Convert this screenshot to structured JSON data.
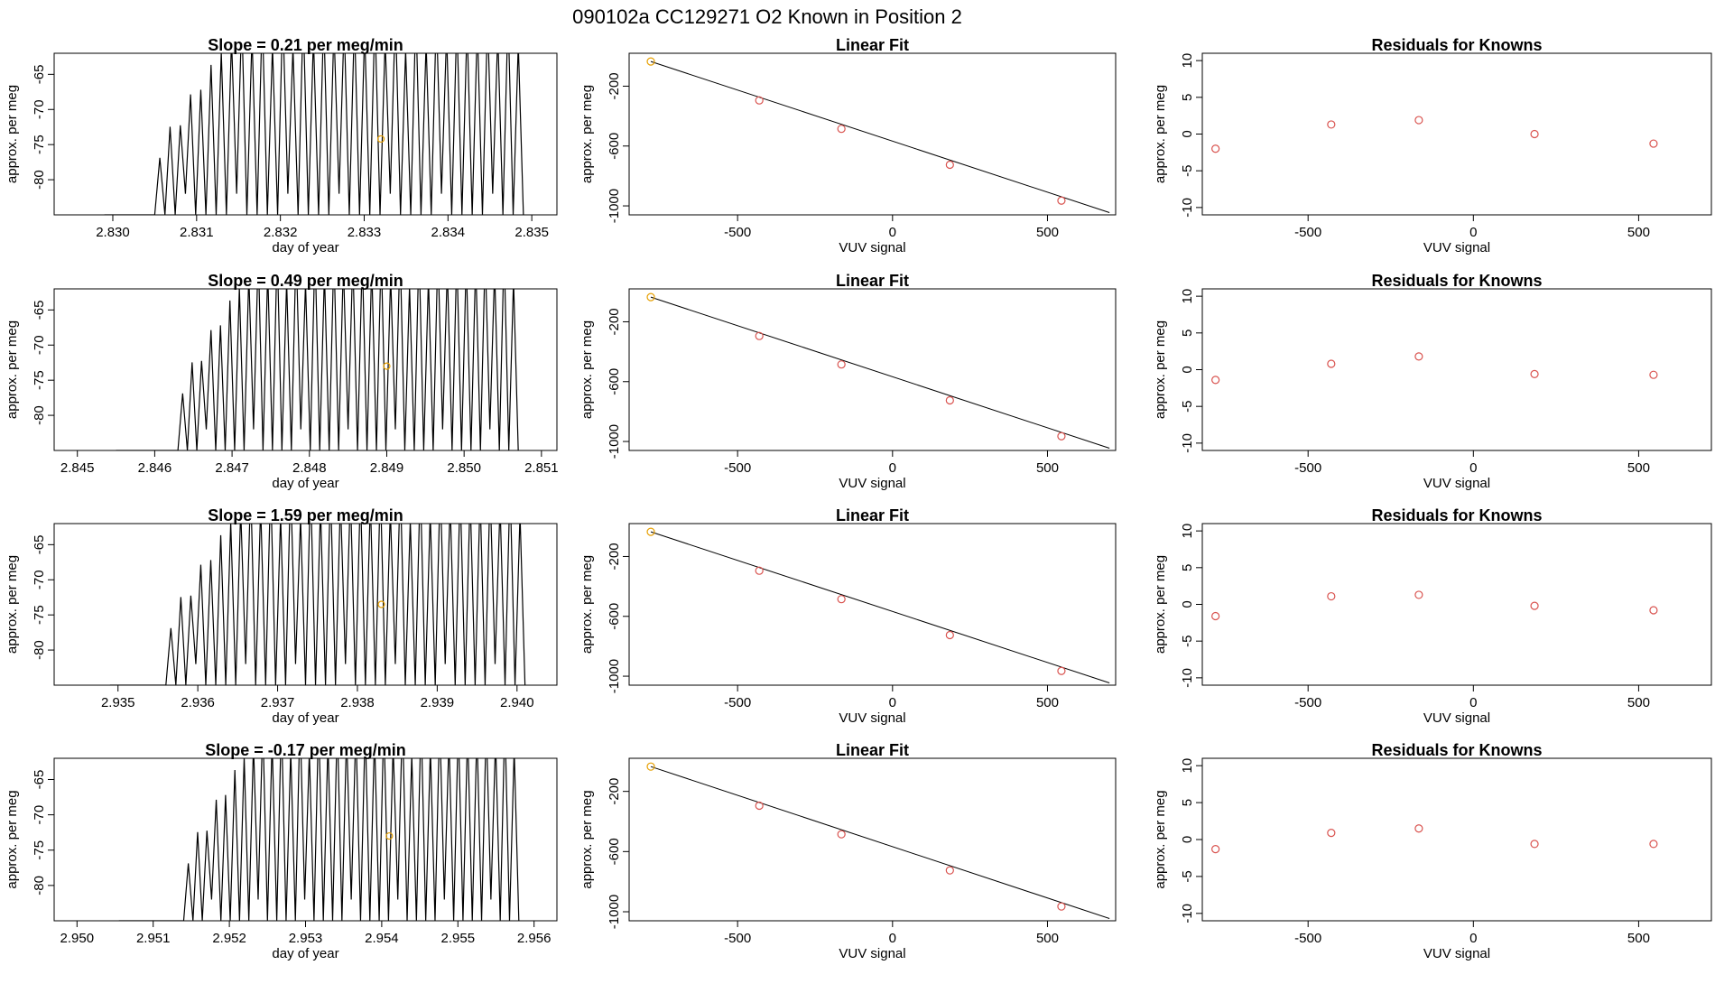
{
  "figure": {
    "title": "090102a      CC129271    O2 Known in Position  2"
  },
  "colors": {
    "axis": "#000000",
    "trace": "#000000",
    "point_orange": "#e69f00",
    "point_red": "#d9534f"
  },
  "chart_data": [
    {
      "type": "line",
      "row": 0,
      "col": 0,
      "title": "Slope =  0.21  per meg/min",
      "xlabel": "day of year",
      "ylabel": "approx. per meg",
      "xlim": [
        2.8293,
        2.8353
      ],
      "ylim": [
        -85,
        -62
      ],
      "xticks": [
        "2.830",
        "2.831",
        "2.832",
        "2.833",
        "2.834",
        "2.835"
      ],
      "yticks": [
        "-65",
        "-70",
        "-75",
        "-80"
      ],
      "trace": {
        "x_start": 2.8305,
        "x_end": 2.8349,
        "baseline": -85,
        "cycles": 36
      },
      "marker": {
        "x": 2.8332,
        "y": -74.2
      }
    },
    {
      "type": "line",
      "row": 1,
      "col": 0,
      "title": "Slope =  0.49  per meg/min",
      "xlabel": "day of year",
      "ylabel": "approx. per meg",
      "xlim": [
        2.8447,
        2.8512
      ],
      "ylim": [
        -85,
        -62
      ],
      "xticks": [
        "2.845",
        "2.846",
        "2.847",
        "2.848",
        "2.849",
        "2.850",
        "2.851"
      ],
      "yticks": [
        "-65",
        "-70",
        "-75",
        "-80"
      ],
      "trace": {
        "x_start": 2.8463,
        "x_end": 2.8507,
        "baseline": -85,
        "cycles": 36
      },
      "marker": {
        "x": 2.849,
        "y": -73
      }
    },
    {
      "type": "line",
      "row": 2,
      "col": 0,
      "title": "Slope =  1.59  per meg/min",
      "xlabel": "day of year",
      "ylabel": "approx. per meg",
      "xlim": [
        2.9342,
        2.9405
      ],
      "ylim": [
        -85,
        -62
      ],
      "xticks": [
        "2.935",
        "2.936",
        "2.937",
        "2.938",
        "2.939",
        "2.940"
      ],
      "yticks": [
        "-65",
        "-70",
        "-75",
        "-80"
      ],
      "trace": {
        "x_start": 2.9356,
        "x_end": 2.9401,
        "baseline": -85,
        "cycles": 36
      },
      "marker": {
        "x": 2.9383,
        "y": -73.5
      }
    },
    {
      "type": "line",
      "row": 3,
      "col": 0,
      "title": "Slope =  -0.17  per meg/min",
      "xlabel": "day of year",
      "ylabel": "approx. per meg",
      "xlim": [
        2.9497,
        2.9563
      ],
      "ylim": [
        -85,
        -62
      ],
      "xticks": [
        "2.950",
        "2.951",
        "2.952",
        "2.953",
        "2.954",
        "2.955",
        "2.956"
      ],
      "yticks": [
        "-65",
        "-70",
        "-75",
        "-80"
      ],
      "trace": {
        "x_start": 2.9514,
        "x_end": 2.9558,
        "baseline": -85,
        "cycles": 36
      },
      "marker": {
        "x": 2.9541,
        "y": -73
      }
    },
    {
      "type": "scatter",
      "row": 0,
      "col": 1,
      "title": "Linear Fit",
      "xlabel": "VUV signal",
      "ylabel": "approx. per meg",
      "xlim": [
        -850,
        720
      ],
      "ylim": [
        -1060,
        20
      ],
      "xticks": [
        "-500",
        "0",
        "500"
      ],
      "yticks": [
        "-200",
        "-600",
        "-1000"
      ],
      "points": [
        [
          -780,
          -35
        ],
        [
          -430,
          -295
        ],
        [
          -165,
          -485
        ],
        [
          185,
          -725
        ],
        [
          545,
          -965
        ]
      ],
      "point_colors": [
        "orange",
        "red",
        "red",
        "red",
        "red"
      ],
      "fit_line": [
        [
          -780,
          -35
        ],
        [
          700,
          -1045
        ]
      ]
    },
    {
      "type": "scatter",
      "row": 1,
      "col": 1,
      "title": "Linear Fit",
      "xlabel": "VUV signal",
      "ylabel": "approx. per meg",
      "xlim": [
        -850,
        720
      ],
      "ylim": [
        -1060,
        20
      ],
      "xticks": [
        "-500",
        "0",
        "500"
      ],
      "yticks": [
        "-200",
        "-600",
        "-1000"
      ],
      "points": [
        [
          -780,
          -35
        ],
        [
          -430,
          -295
        ],
        [
          -165,
          -485
        ],
        [
          185,
          -725
        ],
        [
          545,
          -965
        ]
      ],
      "point_colors": [
        "orange",
        "red",
        "red",
        "red",
        "red"
      ],
      "fit_line": [
        [
          -780,
          -35
        ],
        [
          700,
          -1045
        ]
      ]
    },
    {
      "type": "scatter",
      "row": 2,
      "col": 1,
      "title": "Linear Fit",
      "xlabel": "VUV signal",
      "ylabel": "approx. per meg",
      "xlim": [
        -850,
        720
      ],
      "ylim": [
        -1060,
        20
      ],
      "xticks": [
        "-500",
        "0",
        "500"
      ],
      "yticks": [
        "-200",
        "-600",
        "-1000"
      ],
      "points": [
        [
          -780,
          -35
        ],
        [
          -430,
          -295
        ],
        [
          -165,
          -485
        ],
        [
          185,
          -725
        ],
        [
          545,
          -965
        ]
      ],
      "point_colors": [
        "orange",
        "red",
        "red",
        "red",
        "red"
      ],
      "fit_line": [
        [
          -780,
          -35
        ],
        [
          700,
          -1045
        ]
      ]
    },
    {
      "type": "scatter",
      "row": 3,
      "col": 1,
      "title": "Linear Fit",
      "xlabel": "VUV signal",
      "ylabel": "approx. per meg",
      "xlim": [
        -850,
        720
      ],
      "ylim": [
        -1060,
        20
      ],
      "xticks": [
        "-500",
        "0",
        "500"
      ],
      "yticks": [
        "-200",
        "-600",
        "-1000"
      ],
      "points": [
        [
          -780,
          -35
        ],
        [
          -430,
          -295
        ],
        [
          -165,
          -485
        ],
        [
          185,
          -725
        ],
        [
          545,
          -965
        ]
      ],
      "point_colors": [
        "orange",
        "red",
        "red",
        "red",
        "red"
      ],
      "fit_line": [
        [
          -780,
          -35
        ],
        [
          700,
          -1045
        ]
      ]
    },
    {
      "type": "scatter",
      "row": 0,
      "col": 2,
      "title": "Residuals for Knowns",
      "xlabel": "VUV signal",
      "ylabel": "approx. per meg",
      "xlim": [
        -820,
        720
      ],
      "ylim": [
        -11,
        11
      ],
      "xticks": [
        "-500",
        "0",
        "500"
      ],
      "yticks": [
        "10",
        "5",
        "0",
        "-5",
        "-10"
      ],
      "points": [
        [
          -780,
          -2
        ],
        [
          -430,
          1.3
        ],
        [
          -165,
          1.9
        ],
        [
          185,
          0
        ],
        [
          545,
          -1.3
        ]
      ]
    },
    {
      "type": "scatter",
      "row": 1,
      "col": 2,
      "title": "Residuals for Knowns",
      "xlabel": "VUV signal",
      "ylabel": "approx. per meg",
      "xlim": [
        -820,
        720
      ],
      "ylim": [
        -11,
        11
      ],
      "xticks": [
        "-500",
        "0",
        "500"
      ],
      "yticks": [
        "10",
        "5",
        "0",
        "-5",
        "-10"
      ],
      "points": [
        [
          -780,
          -1.4
        ],
        [
          -430,
          0.8
        ],
        [
          -165,
          1.8
        ],
        [
          185,
          -0.6
        ],
        [
          545,
          -0.7
        ]
      ]
    },
    {
      "type": "scatter",
      "row": 2,
      "col": 2,
      "title": "Residuals for Knowns",
      "xlabel": "VUV signal",
      "ylabel": "approx. per meg",
      "xlim": [
        -820,
        720
      ],
      "ylim": [
        -11,
        11
      ],
      "xticks": [
        "-500",
        "0",
        "500"
      ],
      "yticks": [
        "10",
        "5",
        "0",
        "-5",
        "-10"
      ],
      "points": [
        [
          -780,
          -1.6
        ],
        [
          -430,
          1.1
        ],
        [
          -165,
          1.3
        ],
        [
          185,
          -0.2
        ],
        [
          545,
          -0.8
        ]
      ]
    },
    {
      "type": "scatter",
      "row": 3,
      "col": 2,
      "title": "Residuals for Knowns",
      "xlabel": "VUV signal",
      "ylabel": "approx. per meg",
      "xlim": [
        -820,
        720
      ],
      "ylim": [
        -11,
        11
      ],
      "xticks": [
        "-500",
        "0",
        "500"
      ],
      "yticks": [
        "10",
        "5",
        "0",
        "-5",
        "-10"
      ],
      "points": [
        [
          -780,
          -1.3
        ],
        [
          -430,
          0.9
        ],
        [
          -165,
          1.5
        ],
        [
          185,
          -0.6
        ],
        [
          545,
          -0.6
        ]
      ]
    }
  ]
}
